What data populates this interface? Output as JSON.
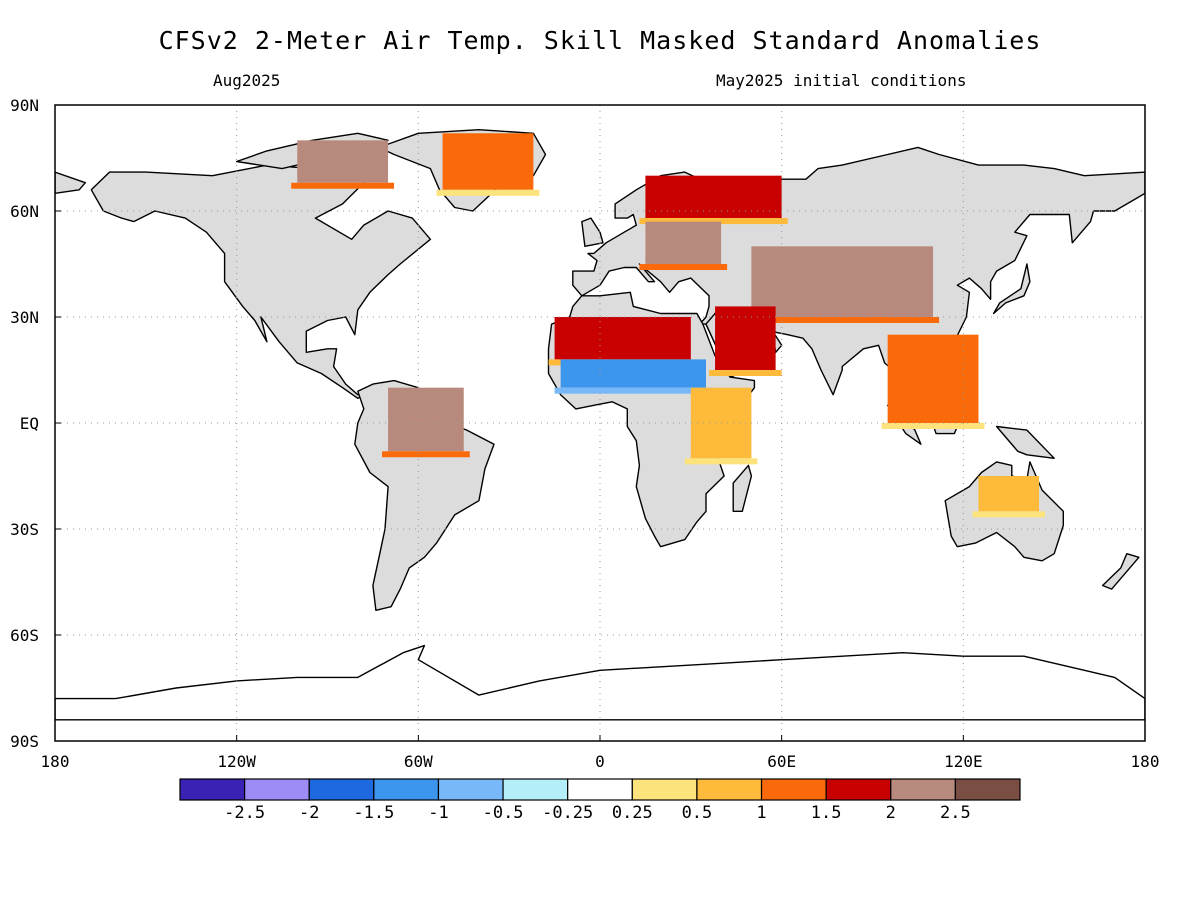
{
  "title": "CFSv2 2-Meter Air Temp. Skill Masked Standard Anomalies",
  "target_month": "Aug2025",
  "initial_conditions": "May2025 initial conditions",
  "colors": {
    "land_masked": "#dcdcdc",
    "ocean": "#ffffff",
    "coast": "#000000",
    "grid": "#999999"
  },
  "chart_data": {
    "type": "heatmap",
    "map_projection": "cylindrical equidistant",
    "lon_range": [
      -180,
      180
    ],
    "lat_range": [
      -90,
      90
    ],
    "grid": true,
    "lat_ticks": [
      "90N",
      "60N",
      "30N",
      "EQ",
      "30S",
      "60S",
      "90S"
    ],
    "lon_ticks": [
      "180",
      "120W",
      "60W",
      "0",
      "60E",
      "120E",
      "180"
    ],
    "colorbar": {
      "labels": [
        "-2.5",
        "-2",
        "-1.5",
        "-1",
        "-0.5",
        "-0.25",
        "0.25",
        "0.5",
        "1",
        "1.5",
        "2",
        "2.5"
      ],
      "colors": [
        "#3a22b4",
        "#9d8cf5",
        "#1e68e0",
        "#3c96ee",
        "#78b8f8",
        "#b4eef8",
        "#ffffff",
        "#fde37b",
        "#fdba3b",
        "#fa6a0b",
        "#c80000",
        "#b88a7e",
        "#7a4e43"
      ]
    },
    "regions": [
      {
        "name": "Greenland",
        "lon": [
          -52,
          -22
        ],
        "lat": [
          66,
          82
        ],
        "level": 1.5
      },
      {
        "name": "NE Canada Arctic",
        "lon": [
          -100,
          -70
        ],
        "lat": [
          68,
          80
        ],
        "level": 2.5
      },
      {
        "name": "Scandinavia/Russia N",
        "lon": [
          15,
          60
        ],
        "lat": [
          58,
          70
        ],
        "level": 2
      },
      {
        "name": "Eastern Europe",
        "lon": [
          15,
          40
        ],
        "lat": [
          45,
          57
        ],
        "level": 2.5
      },
      {
        "name": "Central Asia",
        "lon": [
          50,
          110
        ],
        "lat": [
          30,
          50
        ],
        "level": 2.5
      },
      {
        "name": "N Africa Sahara",
        "lon": [
          -15,
          30
        ],
        "lat": [
          18,
          30
        ],
        "level": 2
      },
      {
        "name": "Arabian Peninsula",
        "lon": [
          38,
          58
        ],
        "lat": [
          15,
          33
        ],
        "level": 2
      },
      {
        "name": "Sahel",
        "lon": [
          -13,
          35
        ],
        "lat": [
          10,
          18
        ],
        "level": -1
      },
      {
        "name": "Northern South America",
        "lon": [
          -70,
          -45
        ],
        "lat": [
          -8,
          10
        ],
        "level": 2.5
      },
      {
        "name": "East Africa",
        "lon": [
          30,
          50
        ],
        "lat": [
          -10,
          10
        ],
        "level": 1
      },
      {
        "name": "SE Asia",
        "lon": [
          95,
          125
        ],
        "lat": [
          0,
          25
        ],
        "level": 1.5
      },
      {
        "name": "NW Australia",
        "lon": [
          125,
          145
        ],
        "lat": [
          -25,
          -15
        ],
        "level": 1
      }
    ]
  }
}
